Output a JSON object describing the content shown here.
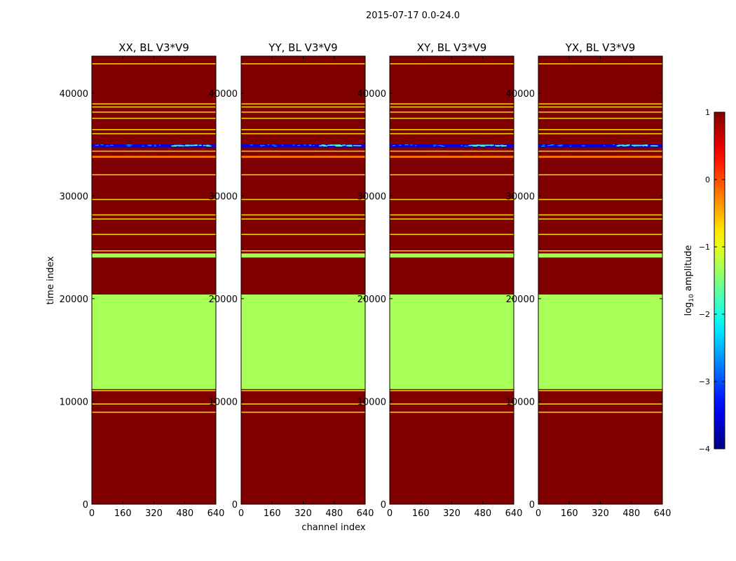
{
  "figure": {
    "suptitle": "2015-07-17 0.0-24.0",
    "ylabel": "time index",
    "xlabel": "channel index"
  },
  "chart_data": {
    "type": "heatmap",
    "colormap": "jet",
    "x_range": [
      0,
      640
    ],
    "y_range": [
      0,
      43600
    ],
    "x_ticks": [
      0,
      160,
      320,
      480,
      640
    ],
    "y_ticks": [
      0,
      10000,
      20000,
      30000,
      40000
    ],
    "background_log_amplitude": 1.0,
    "row_bands": [
      {
        "t0": 11200,
        "t1": 20400,
        "log_amplitude": -1.3
      },
      {
        "t0": 24000,
        "t1": 24400,
        "log_amplitude": -1.3
      },
      {
        "t0": 8900,
        "t1": 9000,
        "log_amplitude": -0.7
      },
      {
        "t0": 9700,
        "t1": 9800,
        "log_amplitude": -0.7
      },
      {
        "t0": 11000,
        "t1": 11100,
        "log_amplitude": -0.7
      },
      {
        "t0": 24600,
        "t1": 24700,
        "log_amplitude": -0.7
      },
      {
        "t0": 26200,
        "t1": 26300,
        "log_amplitude": -0.7
      },
      {
        "t0": 27700,
        "t1": 27800,
        "log_amplitude": -0.7
      },
      {
        "t0": 28100,
        "t1": 28200,
        "log_amplitude": -0.7
      },
      {
        "t0": 29600,
        "t1": 29700,
        "log_amplitude": -0.7
      },
      {
        "t0": 32000,
        "t1": 32100,
        "log_amplitude": -0.7
      },
      {
        "t0": 33700,
        "t1": 33900,
        "log_amplitude": -0.2
      },
      {
        "t0": 34300,
        "t1": 34400,
        "log_amplitude": -0.7
      },
      {
        "t0": 36000,
        "t1": 36100,
        "log_amplitude": -0.7
      },
      {
        "t0": 36400,
        "t1": 36500,
        "log_amplitude": -0.7
      },
      {
        "t0": 37500,
        "t1": 37600,
        "log_amplitude": -0.7
      },
      {
        "t0": 38100,
        "t1": 38200,
        "log_amplitude": -0.7
      },
      {
        "t0": 38600,
        "t1": 38700,
        "log_amplitude": -0.7
      },
      {
        "t0": 38900,
        "t1": 39000,
        "log_amplitude": -0.7
      },
      {
        "t0": 42800,
        "t1": 42900,
        "log_amplitude": -0.7
      }
    ],
    "noisy_band": {
      "t0": 34700,
      "t1": 35000,
      "split_channel": 400,
      "low_log_amplitude": -3.5,
      "high_log_amplitude": -1.8
    },
    "panels": [
      {
        "title": "XX, BL V3*V9"
      },
      {
        "title": "YY, BL V3*V9"
      },
      {
        "title": "XY, BL V3*V9"
      },
      {
        "title": "YX, BL V3*V9"
      }
    ],
    "colorbar": {
      "label_prefix": "log",
      "label_sub": "10",
      "label_suffix": " amplitude",
      "range": [
        -4,
        1
      ],
      "ticks": [
        1,
        0,
        -1,
        -2,
        -3,
        -4
      ],
      "tick_labels": [
        "1",
        "0",
        "−1",
        "−2",
        "−3",
        "−4"
      ]
    }
  }
}
